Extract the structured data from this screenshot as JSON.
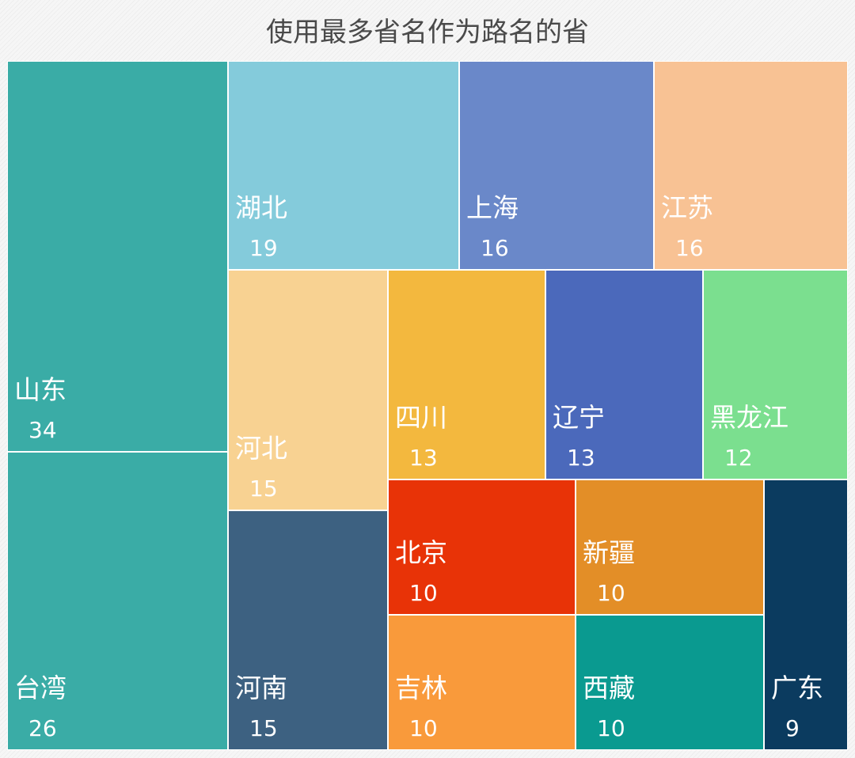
{
  "chart_data": {
    "type": "treemap",
    "title": "使用最多省名作为路名的省",
    "items": [
      {
        "name": "山东",
        "value": 34,
        "color": "#3aaca6"
      },
      {
        "name": "台湾",
        "value": 26,
        "color": "#3aaca6"
      },
      {
        "name": "湖北",
        "value": 19,
        "color": "#84cbdb"
      },
      {
        "name": "上海",
        "value": 16,
        "color": "#6a88c9"
      },
      {
        "name": "江苏",
        "value": 16,
        "color": "#f8c294"
      },
      {
        "name": "河北",
        "value": 15,
        "color": "#f8d292"
      },
      {
        "name": "河南",
        "value": 15,
        "color": "#3d6181"
      },
      {
        "name": "四川",
        "value": 13,
        "color": "#f3b83e"
      },
      {
        "name": "辽宁",
        "value": 13,
        "color": "#4b69bb"
      },
      {
        "name": "黑龙江",
        "value": 12,
        "color": "#7bdf8f"
      },
      {
        "name": "北京",
        "value": 10,
        "color": "#e83307"
      },
      {
        "name": "新疆",
        "value": 10,
        "color": "#e38e27"
      },
      {
        "name": "吉林",
        "value": 10,
        "color": "#f99a3b"
      },
      {
        "name": "西藏",
        "value": 10,
        "color": "#0a9a90"
      },
      {
        "name": "广东",
        "value": 9,
        "color": "#0b3b5f"
      }
    ]
  }
}
